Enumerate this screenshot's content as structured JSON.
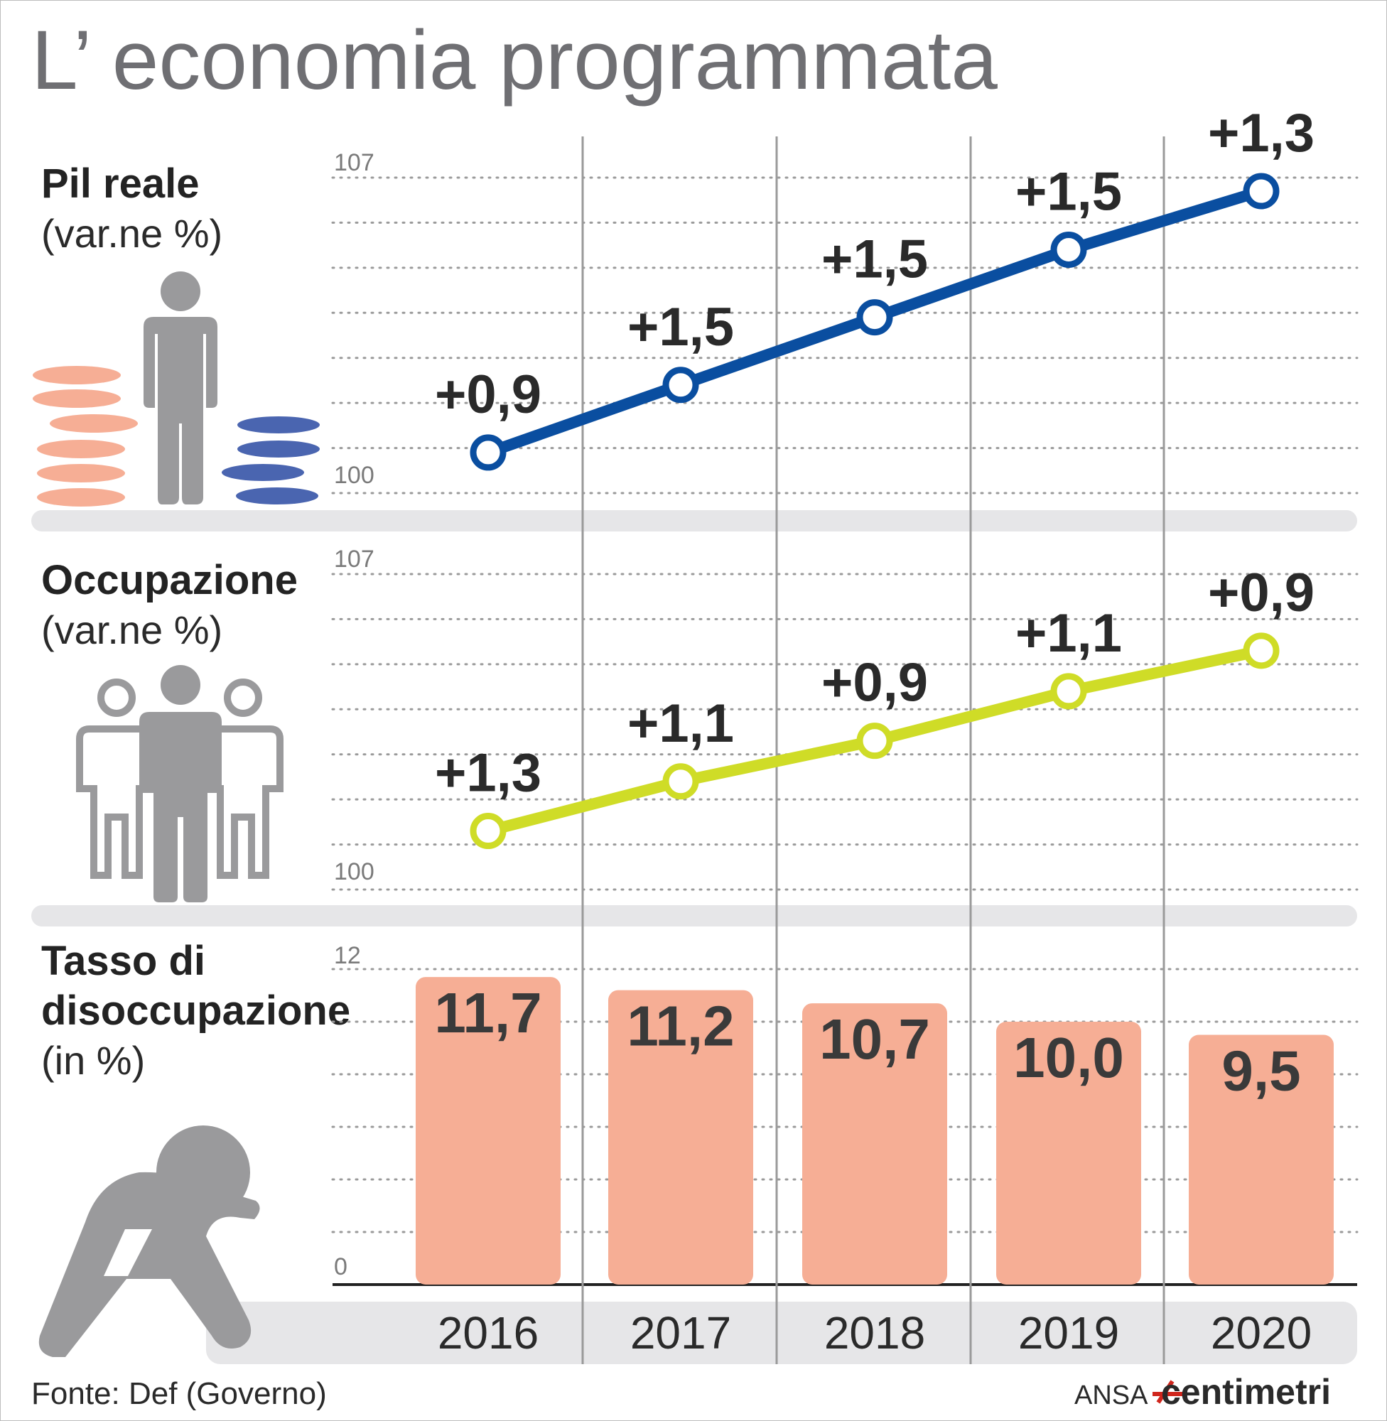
{
  "title": "L’ economia programmata",
  "source": "Fonte: Def (Governo)",
  "credit": {
    "agency": "ANSA",
    "brand": "centimetri"
  },
  "colors": {
    "pil_line": "#0a4ea0",
    "occupazione_line": "#cfdc27",
    "bars": "#f6ae95",
    "icons": "#9a9a9c",
    "coins_red": "#f6ae95",
    "coins_blue": "#4a65b0"
  },
  "icons": {
    "pil": "person-with-coins-icon",
    "occupazione": "group-of-people-icon",
    "disoccupazione": "sitting-sad-person-icon"
  },
  "chart_data": [
    {
      "type": "line",
      "panel_title": "Pil reale",
      "panel_subtitle": "(var.ne %)",
      "x": [
        "2016",
        "2017",
        "2018",
        "2019",
        "2020"
      ],
      "series": [
        {
          "values": [
            0.9,
            1.5,
            1.5,
            1.5,
            1.3
          ],
          "labels": [
            "+0,9",
            "+1,5",
            "+1,5",
            "+1,5",
            "+1,3"
          ],
          "index": [
            100.9,
            102.4,
            103.9,
            105.4,
            106.7
          ]
        }
      ],
      "ylim": [
        100,
        107
      ],
      "y_tick_labels": [
        "100",
        "107"
      ],
      "grid": true
    },
    {
      "type": "line",
      "panel_title": "Occupazione",
      "panel_subtitle": "(var.ne %)",
      "x": [
        "2016",
        "2017",
        "2018",
        "2019",
        "2020"
      ],
      "series": [
        {
          "values": [
            1.3,
            1.1,
            0.9,
            1.1,
            0.9
          ],
          "labels": [
            "+1,3",
            "+1,1",
            "+0,9",
            "+1,1",
            "+0,9"
          ],
          "index": [
            101.3,
            102.4,
            103.3,
            104.4,
            105.3
          ]
        }
      ],
      "ylim": [
        100,
        107
      ],
      "y_tick_labels": [
        "100",
        "107"
      ],
      "grid": true
    },
    {
      "type": "bar",
      "panel_title_lines": [
        "Tasso di",
        "disoccupazione"
      ],
      "panel_subtitle": "(in %)",
      "categories": [
        "2016",
        "2017",
        "2018",
        "2019",
        "2020"
      ],
      "values": [
        11.7,
        11.2,
        10.7,
        10.0,
        9.5
      ],
      "labels": [
        "11,7",
        "11,2",
        "10,7",
        "10,0",
        "9,5"
      ],
      "ylim": [
        0,
        12
      ],
      "y_tick_labels": [
        "0",
        "12"
      ],
      "grid": true
    }
  ]
}
